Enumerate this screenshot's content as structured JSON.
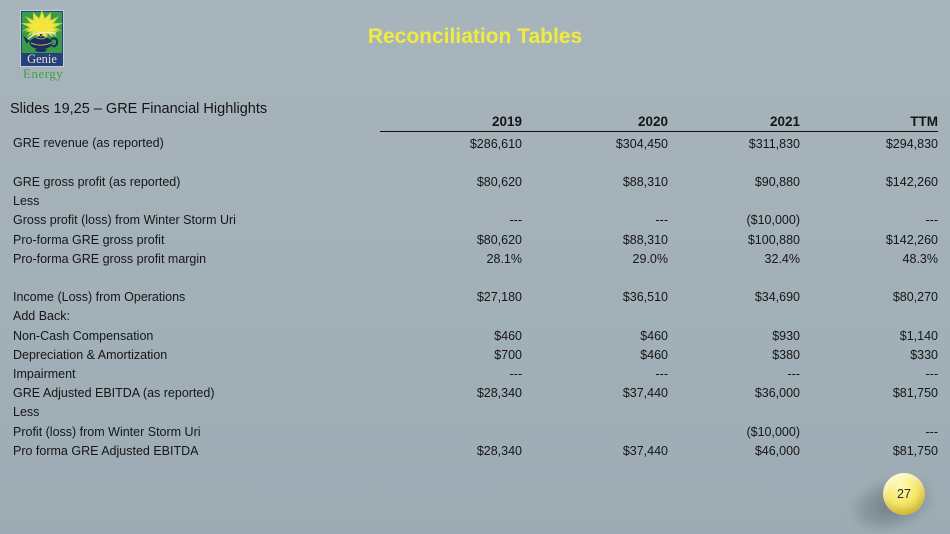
{
  "slide": {
    "title": "Reconciliation Tables",
    "subtitle": "Slides 19,25 – GRE Financial Highlights",
    "page_number": "27"
  },
  "logo": {
    "name": "Genie",
    "tagline": "Energy",
    "icons": [
      "starburst-icon",
      "genie-lamp-icon"
    ]
  },
  "colors": {
    "background": "#a2b0b8",
    "title_yellow": "#f0eb3e",
    "text": "#161616",
    "header_rule": "#101010",
    "badge_yellow": "#f6ea6e",
    "logo_green": "#3a9c44",
    "logo_navy": "#24407f",
    "logo_star_yellow": "#f3e53c"
  },
  "table": {
    "columns": [
      "",
      "2019",
      "2020",
      "2021",
      "TTM"
    ],
    "rows": [
      {
        "label": "GRE revenue (as reported)",
        "values": [
          "$286,610",
          "$304,450",
          "$311,830",
          "$294,830"
        ]
      },
      {
        "label": "",
        "values": [
          "",
          "",
          "",
          ""
        ]
      },
      {
        "label": "GRE gross profit (as reported)",
        "values": [
          "$80,620",
          "$88,310",
          "$90,880",
          "$142,260"
        ]
      },
      {
        "label": "Less",
        "values": [
          "",
          "",
          "",
          ""
        ]
      },
      {
        "label": "Gross profit (loss) from Winter Storm Uri",
        "values": [
          "---",
          "---",
          "($10,000)",
          "---"
        ]
      },
      {
        "label": "Pro-forma GRE gross profit",
        "values": [
          "$80,620",
          "$88,310",
          "$100,880",
          "$142,260"
        ]
      },
      {
        "label": "Pro-forma GRE gross profit margin",
        "values": [
          "28.1%",
          "29.0%",
          "32.4%",
          "48.3%"
        ]
      },
      {
        "label": "",
        "values": [
          "",
          "",
          "",
          ""
        ]
      },
      {
        "label": "Income (Loss) from Operations",
        "values": [
          "$27,180",
          "$36,510",
          "$34,690",
          "$80,270"
        ]
      },
      {
        "label": "Add Back:",
        "values": [
          "",
          "",
          "",
          ""
        ]
      },
      {
        "label": "Non-Cash Compensation",
        "values": [
          "$460",
          "$460",
          "$930",
          "$1,140"
        ]
      },
      {
        "label": "Depreciation & Amortization",
        "values": [
          "$700",
          "$460",
          "$380",
          "$330"
        ]
      },
      {
        "label": "Impairment",
        "values": [
          "---",
          "---",
          "---",
          "---"
        ]
      },
      {
        "label": "GRE Adjusted EBITDA (as reported)",
        "values": [
          "$28,340",
          "$37,440",
          "$36,000",
          "$81,750"
        ]
      },
      {
        "label": "Less",
        "values": [
          "",
          "",
          "",
          ""
        ]
      },
      {
        "label": "Profit (loss) from Winter Storm Uri",
        "values": [
          "",
          "",
          "($10,000)",
          "---"
        ]
      },
      {
        "label": "Pro forma GRE Adjusted EBITDA",
        "values": [
          "$28,340",
          "$37,440",
          "$46,000",
          "$81,750"
        ]
      }
    ]
  }
}
